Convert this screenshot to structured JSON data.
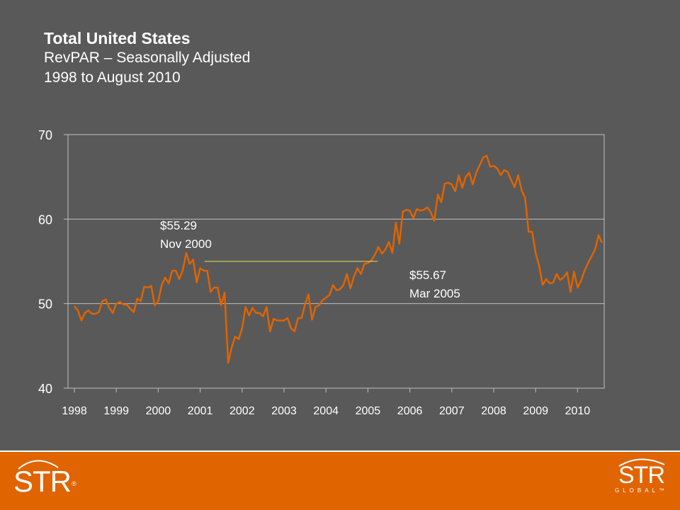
{
  "header": {
    "title": "Total United States",
    "subtitle": "RevPAR – Seasonally Adjusted",
    "period": "1998 to August 2010"
  },
  "chart_data": {
    "type": "line",
    "x_axis_labels": [
      "1998",
      "1999",
      "2000",
      "2001",
      "2002",
      "2003",
      "2004",
      "2005",
      "2006",
      "2007",
      "2008",
      "2009",
      "2010"
    ],
    "yticks": [
      40,
      50,
      60,
      70
    ],
    "ylim": [
      40,
      70
    ],
    "grid": true,
    "series": [
      {
        "color": "#e06400",
        "start": "1998-01",
        "values": [
          49.7,
          49.2,
          48.0,
          48.9,
          49.2,
          48.8,
          48.8,
          49.0,
          50.3,
          50.5,
          49.5,
          48.9,
          50.0,
          50.2,
          49.9,
          49.9,
          49.4,
          49.0,
          50.6,
          50.3,
          52.0,
          51.9,
          52.1,
          49.8,
          50.3,
          52.2,
          53.1,
          52.4,
          53.9,
          53.9,
          52.9,
          53.9,
          56.0,
          54.7,
          55.2,
          52.5,
          54.2,
          53.9,
          53.9,
          51.4,
          51.9,
          51.9,
          49.8,
          51.3,
          43.0,
          44.8,
          46.1,
          45.8,
          47.1,
          49.6,
          48.6,
          49.5,
          48.9,
          48.9,
          48.5,
          49.6,
          46.7,
          48.2,
          48.0,
          48.0,
          48.0,
          48.3,
          47.1,
          46.7,
          48.3,
          48.3,
          49.9,
          51.1,
          48.1,
          49.6,
          49.8,
          50.4,
          50.7,
          51.0,
          52.2,
          51.6,
          51.7,
          52.2,
          53.5,
          51.8,
          53.2,
          54.2,
          53.5,
          54.7,
          54.8,
          55.1,
          55.8,
          56.7,
          55.9,
          56.4,
          57.3,
          56.0,
          59.6,
          57.1,
          60.9,
          61.1,
          61.0,
          60.1,
          61.2,
          61.0,
          61.1,
          61.4,
          60.8,
          59.8,
          62.9,
          62.0,
          64.2,
          64.3,
          64.1,
          63.3,
          65.2,
          63.7,
          65.0,
          65.5,
          64.1,
          65.5,
          66.4,
          67.3,
          67.5,
          66.2,
          66.3,
          66.0,
          65.2,
          65.8,
          65.6,
          64.6,
          63.8,
          65.2,
          63.4,
          62.5,
          58.5,
          58.5,
          56.0,
          54.5,
          52.2,
          52.9,
          52.4,
          52.5,
          53.5,
          52.8,
          53.1,
          53.7,
          51.4,
          53.8,
          51.9,
          52.7,
          53.9,
          54.8,
          55.6,
          56.4,
          58.1,
          57.2
        ]
      }
    ],
    "annotations": [
      {
        "value": "$55.29",
        "date": "Nov 2000"
      },
      {
        "value": "$55.67",
        "date": "Mar 2005"
      }
    ]
  },
  "footer": {
    "logo_left": "STR",
    "logo_left_mark": "®",
    "logo_right": "STR",
    "logo_right_sub": "GLOBAL™"
  }
}
